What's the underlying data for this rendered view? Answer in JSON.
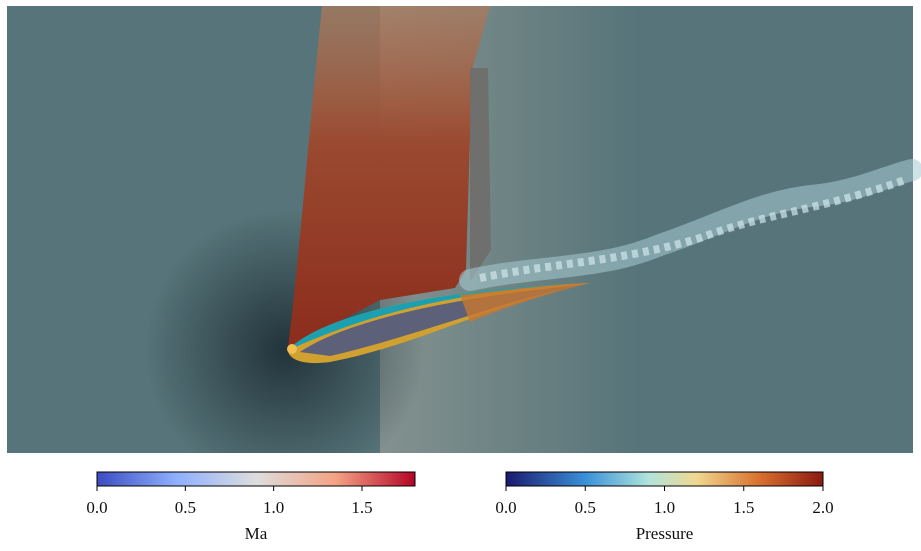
{
  "colorbars": [
    {
      "label": "Ma",
      "lim": [
        0,
        1.8
      ],
      "ticks": [
        {
          "value": 0,
          "label": "0.0"
        },
        {
          "value": 0.5,
          "label": "0.5"
        },
        {
          "value": 1,
          "label": "1.0"
        },
        {
          "value": 1.5,
          "label": "1.5"
        }
      ]
    },
    {
      "label": "Pressure",
      "lim": [
        0,
        2
      ],
      "ticks": [
        {
          "value": 0,
          "label": "0.0"
        },
        {
          "value": 0.5,
          "label": "0.5"
        },
        {
          "value": 1,
          "label": "1.0"
        },
        {
          "value": 1.5,
          "label": "1.5"
        },
        {
          "value": 2,
          "label": "2.0"
        }
      ]
    }
  ]
}
